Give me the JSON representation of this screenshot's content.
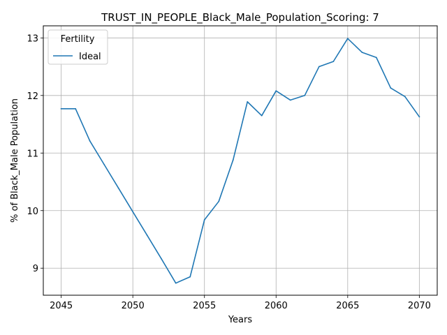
{
  "chart_data": {
    "type": "line",
    "title": "TRUST_IN_PEOPLE_Black_Male_Population_Scoring: 7",
    "xlabel": "Years",
    "ylabel": "% of Black_Male Population",
    "xlim": [
      2043.75,
      2071.25
    ],
    "ylim": [
      8.53,
      13.21
    ],
    "xticks": [
      2045,
      2050,
      2055,
      2060,
      2065,
      2070
    ],
    "yticks": [
      9,
      10,
      11,
      12,
      13
    ],
    "grid": true,
    "legend": {
      "title": "Fertility",
      "placement": "top-left"
    },
    "series": [
      {
        "name": "Ideal",
        "color": "#1f77b4",
        "x": [
          2045,
          2046,
          2047,
          2048,
          2049,
          2050,
          2051,
          2052,
          2053,
          2054,
          2055,
          2056,
          2057,
          2058,
          2059,
          2060,
          2061,
          2062,
          2063,
          2064,
          2065,
          2066,
          2067,
          2068,
          2069,
          2070
        ],
        "y": [
          11.77,
          11.77,
          11.21,
          10.8,
          10.39,
          9.98,
          9.57,
          9.16,
          8.74,
          8.85,
          9.84,
          10.16,
          10.88,
          11.89,
          11.65,
          12.08,
          11.92,
          12.0,
          12.5,
          12.59,
          12.99,
          12.75,
          12.66,
          12.13,
          11.98,
          11.63
        ]
      }
    ]
  }
}
